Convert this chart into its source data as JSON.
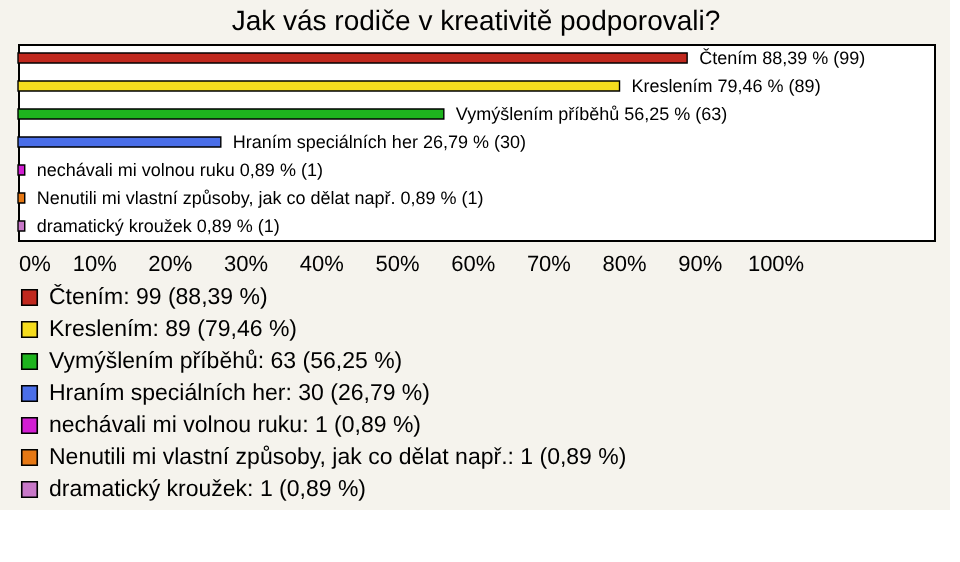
{
  "chart_data": {
    "type": "bar",
    "orientation": "horizontal",
    "stacked": true,
    "title": "Jak vás rodiče v kreativitě podporovali?",
    "categories": [
      null,
      null,
      null,
      null,
      null,
      null,
      null
    ],
    "series": [
      {
        "name": "Čtením: 99 (88,39 %)",
        "color": "#c0281e",
        "values": [
          88.39,
          null,
          null,
          null,
          null,
          null,
          null
        ],
        "value_labels": [
          "Čtením 88,39 % (99)",
          null,
          null,
          null,
          null,
          null,
          null
        ]
      },
      {
        "name": "Kreslením: 89 (79,46 %)",
        "color": "#f5dc1e",
        "values": [
          null,
          79.46,
          null,
          null,
          null,
          null,
          null
        ],
        "value_labels": [
          null,
          "Kreslením 79,46 % (89)",
          null,
          null,
          null,
          null,
          null
        ]
      },
      {
        "name": "Vymýšlením příběhů: 63 (56,25 %)",
        "color": "#1eb41e",
        "values": [
          null,
          null,
          56.25,
          null,
          null,
          null,
          null
        ],
        "value_labels": [
          null,
          null,
          "Vymýšlením příběhů 56,25 % (63)",
          null,
          null,
          null,
          null
        ]
      },
      {
        "name": "Hraním speciálních her: 30 (26,79 %)",
        "color": "#4a6ee8",
        "values": [
          null,
          null,
          null,
          26.79,
          null,
          null,
          null
        ],
        "value_labels": [
          null,
          null,
          null,
          "Hraním speciálních her 26,79 % (30)",
          null,
          null,
          null
        ]
      },
      {
        "name": "nechávali mi volnou ruku: 1 (0,89 %)",
        "color": "#d21ed2",
        "values": [
          null,
          null,
          null,
          null,
          0.89,
          null,
          null
        ],
        "value_labels": [
          null,
          null,
          null,
          null,
          "nechávali mi volnou ruku 0,89 % (1)",
          null,
          null
        ]
      },
      {
        "name": "Nenutili mi vlastní způsoby, jak co dělat např.: 1 (0,89 %)",
        "color": "#e67814",
        "values": [
          null,
          null,
          null,
          null,
          null,
          0.89,
          null
        ],
        "value_labels": [
          null,
          null,
          null,
          null,
          null,
          "Nenutili mi vlastní způsoby, jak co dělat např. 0,89 % (1)",
          null
        ]
      },
      {
        "name": "dramatický kroužek: 1 (0,89 %)",
        "color": "#c878c8",
        "values": [
          null,
          null,
          null,
          null,
          null,
          null,
          0.89
        ],
        "value_labels": [
          null,
          null,
          null,
          null,
          null,
          null,
          "dramatický kroužek 0,89 % (1)"
        ]
      }
    ],
    "xlim": [
      0,
      121
    ],
    "xticks": [
      {
        "value": 0,
        "label": "0%"
      },
      {
        "value": 10,
        "label": "10%"
      },
      {
        "value": 20,
        "label": "20%"
      },
      {
        "value": 30,
        "label": "30%"
      },
      {
        "value": 40,
        "label": "40%"
      },
      {
        "value": 50,
        "label": "50%"
      },
      {
        "value": 60,
        "label": "60%"
      },
      {
        "value": 70,
        "label": "70%"
      },
      {
        "value": 80,
        "label": "80%"
      },
      {
        "value": 90,
        "label": "90%"
      },
      {
        "value": 100,
        "label": "100%"
      }
    ],
    "grid": false,
    "tick_labels": "x",
    "legend": "bottom"
  }
}
